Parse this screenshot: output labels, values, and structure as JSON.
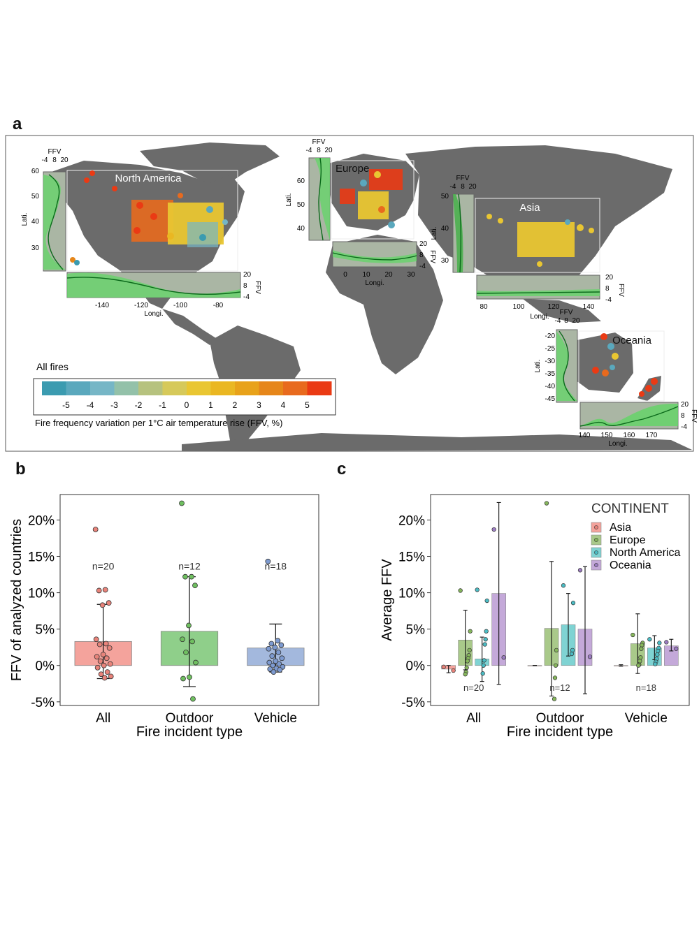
{
  "panels": {
    "a": "a",
    "b": "b",
    "c": "c"
  },
  "map": {
    "regions": [
      {
        "name": "North America",
        "lati_ticks": [
          "60",
          "50",
          "40",
          "30"
        ],
        "longi_ticks": [
          "-140",
          "-120",
          "-100",
          "-80"
        ]
      },
      {
        "name": "Europe",
        "lati_ticks": [
          "60",
          "50",
          "40"
        ],
        "longi_ticks": [
          "0",
          "10",
          "20",
          "30"
        ]
      },
      {
        "name": "Asia",
        "lati_ticks": [
          "50",
          "40",
          "30"
        ],
        "longi_ticks": [
          "80",
          "100",
          "120",
          "140"
        ]
      },
      {
        "name": "Oceania",
        "lati_ticks": [
          "-20",
          "-25",
          "-30",
          "-35",
          "-40",
          "-45"
        ],
        "longi_ticks": [
          "140",
          "150",
          "160",
          "170"
        ]
      }
    ],
    "ffv_ticks": [
      "-4",
      "8",
      "20"
    ],
    "ffv_label": "FFV",
    "lati_label": "Lati.",
    "longi_label": "Longi.",
    "legend_title": "All fires",
    "legend_ticks": [
      "-5",
      "-4",
      "-3",
      "-2",
      "-1",
      "0",
      "1",
      "2",
      "3",
      "4",
      "5"
    ],
    "legend_caption": "Fire frequency variation per 1°C air temperature rise (FFV, %)",
    "legend_colors": [
      "#3b9bb0",
      "#5aa8bd",
      "#76b6c6",
      "#93c1a9",
      "#b6c27e",
      "#d6c95a",
      "#e9c632",
      "#eab722",
      "#e8a21a",
      "#e6861a",
      "#e86a1e",
      "#ea3a14"
    ]
  },
  "chart_data": [
    {
      "type": "bar",
      "panel": "b",
      "categories": [
        "All",
        "Outdoor",
        "Vehicle"
      ],
      "values": [
        3.3,
        4.7,
        2.4
      ],
      "error_low": [
        -1.8,
        -2.9,
        -0.9
      ],
      "error_high": [
        8.4,
        12.2,
        5.7
      ],
      "counts": [
        "n=20",
        "n=12",
        "n=18"
      ],
      "points": [
        [
          18.7,
          10.4,
          10.3,
          8.6,
          8.3,
          3.6,
          3.0,
          2.9,
          2.4,
          1.5,
          1.2,
          1.0,
          0.6,
          0.2,
          0.0,
          -0.3,
          -0.9,
          -1.2,
          -1.5,
          -1.7
        ],
        [
          22.3,
          12.2,
          12.2,
          11.0,
          5.5,
          3.6,
          3.3,
          1.8,
          0.4,
          -1.6,
          -1.8,
          -4.6
        ],
        [
          14.3,
          3.4,
          3.0,
          2.8,
          2.5,
          2.3,
          1.8,
          1.3,
          1.0,
          0.6,
          0.4,
          0.2,
          0.0,
          -0.2,
          -0.4,
          -0.5,
          -0.6,
          -0.9
        ]
      ],
      "colors": [
        "#f4a39c",
        "#8fcf8a",
        "#a3b8dd"
      ],
      "point_colors": [
        "#e8837a",
        "#6fbf60",
        "#7d9ad0"
      ],
      "ylabel": "FFV of analyzed countries",
      "xlabel": "Fire incident type",
      "ylim": [
        -5.5,
        23.5
      ],
      "yticks": [
        "-5%",
        "0%",
        "5%",
        "10%",
        "15%",
        "20%"
      ],
      "ytick_values": [
        -5,
        0,
        5,
        10,
        15,
        20
      ]
    },
    {
      "type": "bar",
      "panel": "c",
      "categories": [
        "All",
        "Outdoor",
        "Vehicle"
      ],
      "legend_title": "CONTINENT",
      "series": [
        {
          "name": "Asia",
          "values": [
            -0.5,
            0.0,
            0.0
          ],
          "error_low": [
            -1.0,
            0.0,
            -0.1
          ],
          "error_high": [
            0.0,
            0.0,
            0.1
          ],
          "color": "#f4a39c",
          "point_color": "#e8837a",
          "points": [
            [
              -0.2,
              -0.7
            ],
            [],
            []
          ]
        },
        {
          "name": "Europe",
          "values": [
            3.5,
            5.1,
            3.0
          ],
          "error_low": [
            -0.6,
            -4.2,
            -1.1
          ],
          "error_high": [
            7.6,
            14.3,
            7.1
          ],
          "color": "#a9c98a",
          "point_color": "#86b65c",
          "points": [
            [
              10.3,
              4.7,
              2.1,
              1.4,
              1.0,
              0.6,
              -0.3,
              -0.9,
              -1.2
            ],
            [
              22.3,
              2.1,
              0.0,
              -1.7,
              -4.6
            ],
            [
              4.2,
              3.1,
              2.8,
              2.3,
              1.1,
              0.6,
              0.1,
              0.0
            ]
          ]
        },
        {
          "name": "North America",
          "values": [
            0.9,
            5.6,
            2.4
          ],
          "error_low": [
            -2.2,
            1.3,
            0.8
          ],
          "error_high": [
            3.9,
            9.9,
            4.1
          ],
          "color": "#7fd3d3",
          "point_color": "#4bbcc4",
          "points": [
            [
              10.4,
              8.9,
              4.7,
              3.6,
              2.9,
              0.7,
              0.0,
              -1.1
            ],
            [
              11.0,
              8.6,
              2.1,
              1.6
            ],
            [
              3.6,
              3.1,
              2.4,
              2.0,
              1.5,
              0.9,
              0.5,
              0.2
            ]
          ]
        },
        {
          "name": "Oceania",
          "values": [
            9.9,
            5.0,
            2.7
          ],
          "error_low": [
            -2.6,
            -3.9,
            2.0
          ],
          "error_high": [
            22.4,
            13.6,
            3.6
          ],
          "color": "#c4a9d9",
          "point_color": "#9c7cc2",
          "points": [
            [
              18.7,
              1.1
            ],
            [
              13.1,
              1.2
            ],
            [
              3.2,
              2.3
            ]
          ]
        }
      ],
      "counts": [
        "n=20",
        "n=12",
        "n=18"
      ],
      "ylabel": "Average FFV",
      "xlabel": "Fire incident type",
      "ylim": [
        -5.5,
        23.5
      ],
      "yticks": [
        "-5%",
        "0%",
        "5%",
        "10%",
        "15%",
        "20%"
      ],
      "ytick_values": [
        -5,
        0,
        5,
        10,
        15,
        20
      ]
    }
  ]
}
